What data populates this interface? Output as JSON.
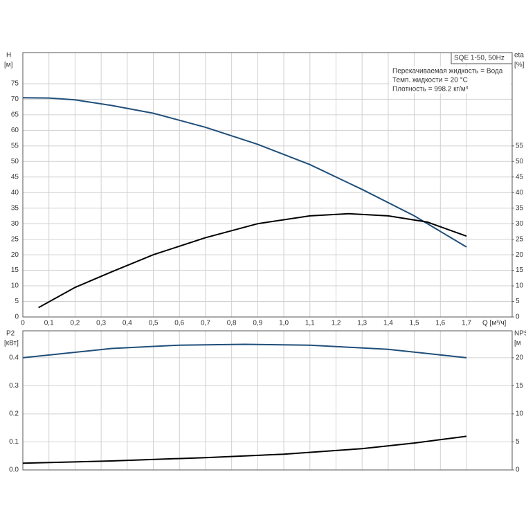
{
  "chart_data": [
    {
      "type": "line",
      "x_label": "Q [м³/ч]",
      "y_label": "H",
      "y_unit": "[м]",
      "y2_label": "eta",
      "y2_unit": "[%]",
      "legend_title": "SQE 1-50, 50Hz",
      "notes": [
        "Перекачиваемая жидкость = Вода",
        "Темп. жидкости = 20 °C",
        "Плотность = 998.2 кг/м³"
      ],
      "xlim": [
        0,
        1.875
      ],
      "xticks": [
        0,
        {
          "value": 0.1,
          "label": "0,1"
        },
        {
          "value": 0.2,
          "label": "0,2"
        },
        {
          "value": 0.3,
          "label": "0,3"
        },
        {
          "value": 0.4,
          "label": "0,4"
        },
        {
          "value": 0.5,
          "label": "0,5"
        },
        {
          "value": 0.6,
          "label": "0,6"
        },
        {
          "value": 0.7,
          "label": "0,7"
        },
        {
          "value": 0.8,
          "label": "0,8"
        },
        {
          "value": 0.9,
          "label": "0,9"
        },
        {
          "value": 1.0,
          "label": "1,0"
        },
        {
          "value": 1.1,
          "label": "1,1"
        },
        {
          "value": 1.2,
          "label": "1,2"
        },
        {
          "value": 1.3,
          "label": "1,3"
        },
        {
          "value": 1.4,
          "label": "1,4"
        },
        {
          "value": 1.5,
          "label": "1,5"
        },
        {
          "value": 1.6,
          "label": "1,6"
        },
        {
          "value": 1.7,
          "label": "1,7"
        }
      ],
      "ylim": [
        0,
        85
      ],
      "yticks": [
        0,
        5,
        10,
        15,
        20,
        25,
        30,
        35,
        40,
        45,
        50,
        55,
        60,
        65,
        70,
        75
      ],
      "y2lim": [
        0,
        85
      ],
      "y2ticks": [
        0,
        5,
        10,
        15,
        20,
        25,
        30,
        35,
        40,
        45,
        50,
        55
      ],
      "grid": true,
      "series": [
        {
          "color": "#1f4e79",
          "x": [
            0,
            0.1,
            0.2,
            0.34,
            0.5,
            0.7,
            0.9,
            1.1,
            1.3,
            1.5,
            1.7
          ],
          "values": [
            70.5,
            70.4,
            69.8,
            68,
            65.5,
            61,
            55.5,
            49,
            41,
            32.5,
            22.5
          ]
        },
        {
          "color": "#000000",
          "axis": "y2",
          "x": [
            0.06,
            0.2,
            0.34,
            0.5,
            0.7,
            0.9,
            1.1,
            1.25,
            1.4,
            1.55,
            1.7
          ],
          "values": [
            3,
            9.5,
            14.5,
            20,
            25.5,
            30,
            32.5,
            33.2,
            32.5,
            30.5,
            26
          ]
        }
      ]
    },
    {
      "type": "line",
      "y_label": "P2",
      "y_unit": "[кВт]",
      "y2_label": "NPS",
      "y2_unit": "[м",
      "xlim": [
        0,
        1.875
      ],
      "ylim": [
        0,
        0.496
      ],
      "yticks": [
        {
          "value": 0,
          "label": "0.0"
        },
        0.1,
        0.2,
        0.3,
        0.4
      ],
      "y2lim": [
        0,
        24.8
      ],
      "y2ticks": [
        0,
        5,
        10,
        15,
        20
      ],
      "grid": true,
      "series": [
        {
          "color": "#1f4e79",
          "x": [
            0,
            0.34,
            0.6,
            0.85,
            1.1,
            1.4,
            1.7
          ],
          "values": [
            0.4,
            0.433,
            0.445,
            0.448,
            0.445,
            0.43,
            0.4
          ]
        },
        {
          "color": "#000000",
          "axis": "y2",
          "x": [
            0,
            0.34,
            0.7,
            1.0,
            1.3,
            1.5,
            1.7
          ],
          "values": [
            1.2,
            1.6,
            2.2,
            2.8,
            3.8,
            4.8,
            6.0
          ]
        }
      ]
    }
  ]
}
